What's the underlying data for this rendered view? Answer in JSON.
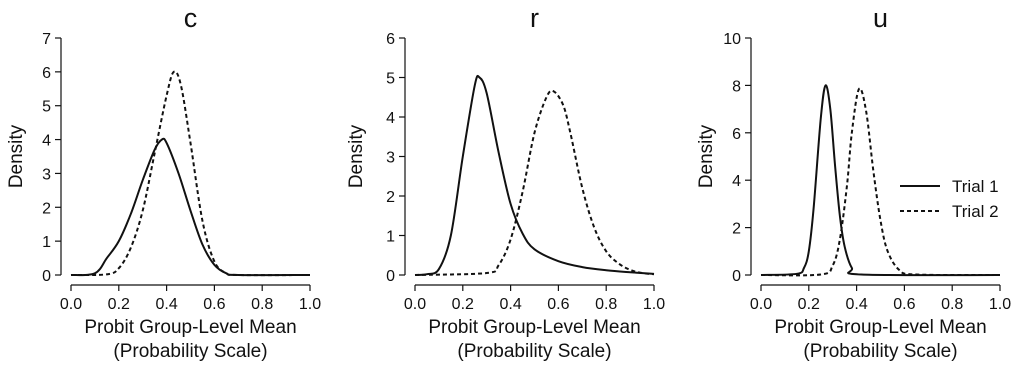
{
  "colors": {
    "ink": "#111111",
    "background": "#ffffff"
  },
  "chart_data": [
    {
      "type": "line",
      "title": "c",
      "xlabel": [
        "Probit Group-Level Mean",
        "(Probability Scale)"
      ],
      "ylabel": "Density",
      "xlim": [
        0,
        1
      ],
      "ylim": [
        0,
        7
      ],
      "xticks": [
        "0.0",
        "0.2",
        "0.4",
        "0.6",
        "0.8",
        "1.0"
      ],
      "yticks": [
        "0",
        "1",
        "2",
        "3",
        "4",
        "5",
        "6",
        "7"
      ],
      "series": [
        {
          "name": "Trial 1",
          "style": "solid",
          "x": [
            0,
            0.1,
            0.15,
            0.2,
            0.25,
            0.3,
            0.35,
            0.38,
            0.4,
            0.45,
            0.5,
            0.55,
            0.6,
            0.65,
            0.7,
            1.0
          ],
          "y": [
            0,
            0.05,
            0.5,
            1.0,
            1.8,
            2.8,
            3.7,
            4.0,
            3.9,
            3.0,
            1.9,
            0.9,
            0.3,
            0.05,
            0,
            0
          ]
        },
        {
          "name": "Trial 2",
          "style": "dashed",
          "x": [
            0,
            0.15,
            0.2,
            0.25,
            0.3,
            0.35,
            0.4,
            0.43,
            0.46,
            0.5,
            0.55,
            0.6,
            0.65,
            0.7,
            1.0
          ],
          "y": [
            0,
            0.02,
            0.2,
            0.8,
            1.9,
            3.6,
            5.3,
            6.0,
            5.6,
            3.9,
            1.6,
            0.4,
            0.05,
            0,
            0
          ]
        }
      ]
    },
    {
      "type": "line",
      "title": "r",
      "xlabel": [
        "Probit Group-Level Mean",
        "(Probability Scale)"
      ],
      "ylabel": "Density",
      "xlim": [
        0,
        1
      ],
      "ylim": [
        0,
        6
      ],
      "xticks": [
        "0.0",
        "0.2",
        "0.4",
        "0.6",
        "0.8",
        "1.0"
      ],
      "yticks": [
        "0",
        "1",
        "2",
        "3",
        "4",
        "5",
        "6"
      ],
      "series": [
        {
          "name": "Trial 1",
          "style": "solid",
          "x": [
            0,
            0.05,
            0.1,
            0.15,
            0.2,
            0.25,
            0.27,
            0.3,
            0.35,
            0.4,
            0.45,
            0.5,
            0.6,
            0.7,
            0.8,
            0.9,
            1.0
          ],
          "y": [
            0,
            0.02,
            0.15,
            1.0,
            3.0,
            4.8,
            5.0,
            4.6,
            3.1,
            1.8,
            1.05,
            0.65,
            0.35,
            0.2,
            0.12,
            0.07,
            0.03
          ]
        },
        {
          "name": "Trial 2",
          "style": "dashed",
          "x": [
            0,
            0.3,
            0.35,
            0.4,
            0.45,
            0.5,
            0.55,
            0.58,
            0.62,
            0.65,
            0.7,
            0.75,
            0.8,
            0.85,
            0.9,
            0.95,
            1.0
          ],
          "y": [
            0,
            0.05,
            0.25,
            0.9,
            2.1,
            3.6,
            4.5,
            4.65,
            4.3,
            3.6,
            2.2,
            1.2,
            0.6,
            0.3,
            0.13,
            0.05,
            0.02
          ]
        }
      ]
    },
    {
      "type": "line",
      "title": "u",
      "xlabel": [
        "Probit Group-Level Mean",
        "(Probability Scale)"
      ],
      "ylabel": "Density",
      "xlim": [
        0,
        1
      ],
      "ylim": [
        0,
        10
      ],
      "xticks": [
        "0.0",
        "0.2",
        "0.4",
        "0.6",
        "0.8",
        "1.0"
      ],
      "yticks": [
        "0",
        "2",
        "4",
        "6",
        "8",
        "10"
      ],
      "legend": {
        "placement": "right",
        "entries": [
          {
            "label": "Trial 1",
            "style": "solid"
          },
          {
            "label": "Trial 2",
            "style": "dashed"
          }
        ]
      },
      "series": [
        {
          "name": "Trial 1",
          "style": "solid",
          "x": [
            0,
            0.15,
            0.18,
            0.2,
            0.22,
            0.25,
            0.27,
            0.29,
            0.31,
            0.33,
            0.35,
            0.38,
            0.42,
            1.0
          ],
          "y": [
            0,
            0.05,
            0.3,
            1.0,
            2.8,
            6.6,
            8.0,
            7.0,
            4.6,
            2.5,
            1.2,
            0.3,
            0.02,
            0
          ]
        },
        {
          "name": "Trial 2",
          "style": "dashed",
          "x": [
            0,
            0.25,
            0.3,
            0.33,
            0.36,
            0.38,
            0.41,
            0.44,
            0.47,
            0.5,
            0.53,
            0.58,
            0.65,
            1.0
          ],
          "y": [
            0,
            0.02,
            0.4,
            1.5,
            3.8,
            6.0,
            7.85,
            6.9,
            4.4,
            2.3,
            1.0,
            0.2,
            0.02,
            0
          ]
        }
      ]
    }
  ]
}
